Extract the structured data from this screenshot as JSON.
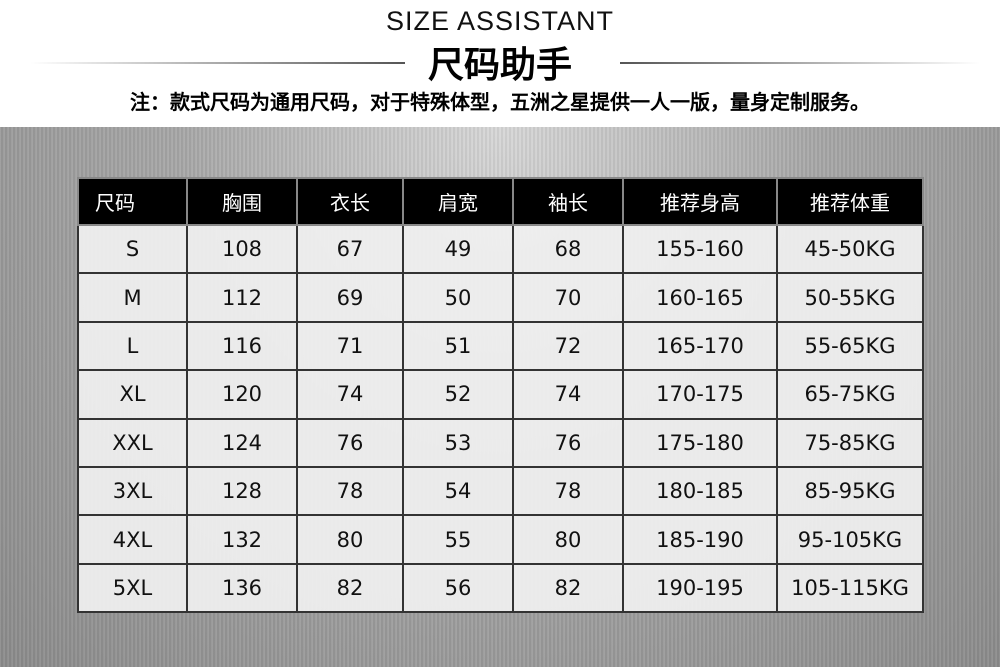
{
  "header": {
    "title_en": "SIZE ASSISTANT",
    "title_cn": "尺码助手",
    "note": "注：款式尺码为通用尺码，对于特殊体型，五洲之星提供一人一版，量身定制服务。"
  },
  "table": {
    "columns": [
      "尺码",
      "胸围",
      "衣长",
      "肩宽",
      "袖长",
      "推荐身高",
      "推荐体重"
    ],
    "rows": [
      [
        "S",
        "108",
        "67",
        "49",
        "68",
        "155-160",
        "45-50KG"
      ],
      [
        "M",
        "112",
        "69",
        "50",
        "70",
        "160-165",
        "50-55KG"
      ],
      [
        "L",
        "116",
        "71",
        "51",
        "72",
        "165-170",
        "55-65KG"
      ],
      [
        "XL",
        "120",
        "74",
        "52",
        "74",
        "170-175",
        "65-75KG"
      ],
      [
        "XXL",
        "124",
        "76",
        "53",
        "76",
        "175-180",
        "75-85KG"
      ],
      [
        "3XL",
        "128",
        "78",
        "54",
        "78",
        "180-185",
        "85-95KG"
      ],
      [
        "4XL",
        "132",
        "80",
        "55",
        "80",
        "185-190",
        "95-105KG"
      ],
      [
        "5XL",
        "136",
        "82",
        "56",
        "82",
        "190-195",
        "105-115KG"
      ]
    ]
  }
}
